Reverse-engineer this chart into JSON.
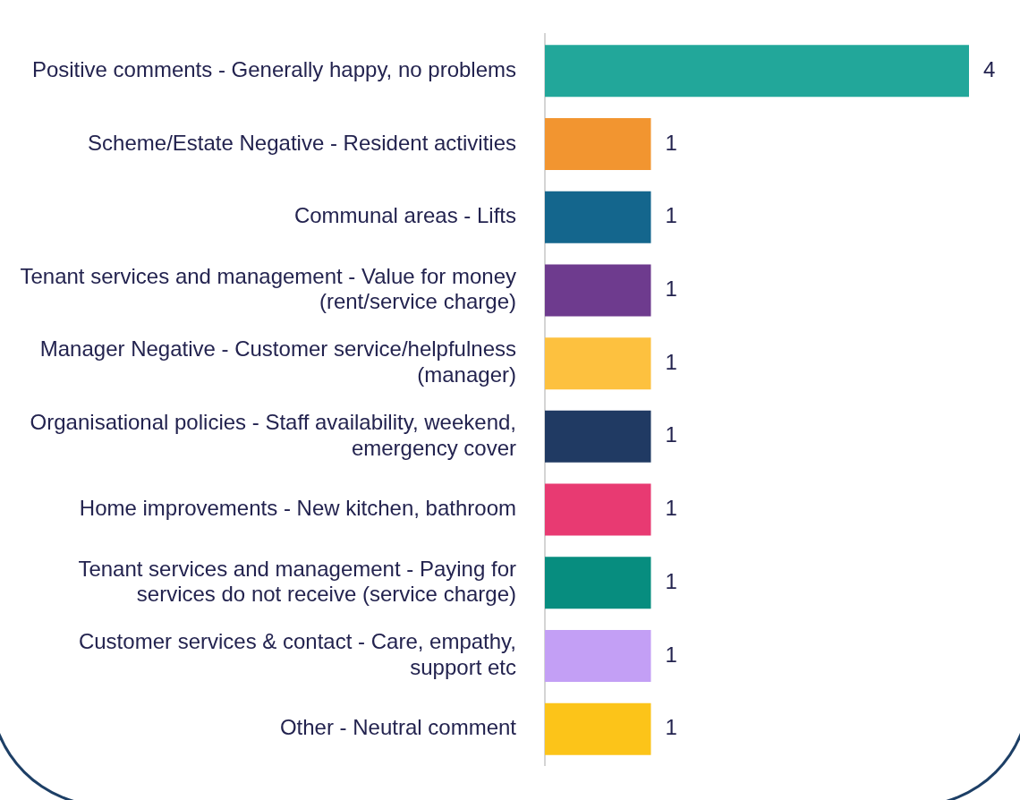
{
  "chart_data": {
    "type": "bar",
    "orientation": "horizontal",
    "categories": [
      "Positive comments - Generally happy, no problems",
      "Scheme/Estate Negative - Resident activities",
      "Communal areas - Lifts",
      "Tenant services and management - Value for money (rent/service charge)",
      "Manager Negative - Customer service/helpfulness (manager)",
      "Organisational policies - Staff availability, weekend, emergency cover",
      "Home improvements - New kitchen, bathroom",
      "Tenant services and management - Paying for services do not receive (service charge)",
      "Customer services & contact - Care, empathy, support etc",
      "Other - Neutral comment"
    ],
    "values": [
      4,
      1,
      1,
      1,
      1,
      1,
      1,
      1,
      1,
      1
    ],
    "colors": [
      "#22a79a",
      "#f29530",
      "#14668d",
      "#6e3b8e",
      "#fdc13f",
      "#203a63",
      "#e83a72",
      "#078d7f",
      "#c39ff5",
      "#fcc419"
    ],
    "data_labels": true,
    "tick_labels": "y",
    "grid": false,
    "legend": false
  }
}
